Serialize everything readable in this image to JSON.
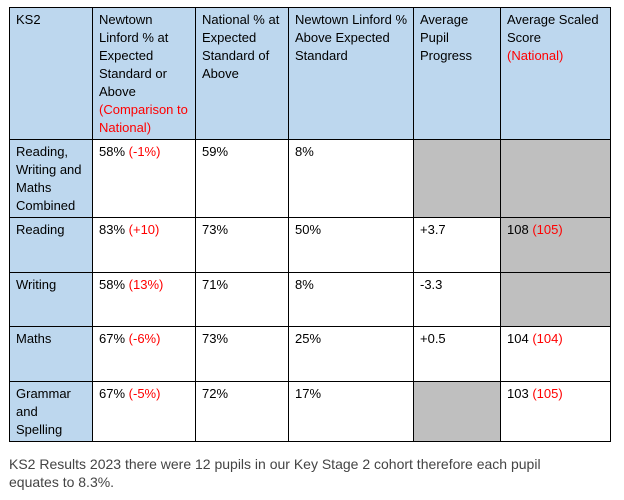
{
  "table": {
    "headers": [
      {
        "text": "KS2",
        "note": ""
      },
      {
        "text": "Newtown Linford % at Expected Standard or Above",
        "note": "(Comparison to National)"
      },
      {
        "text": "National % at Expected Standard of Above",
        "note": ""
      },
      {
        "text": "Newtown Linford % Above Expected Standard",
        "note": ""
      },
      {
        "text": "Average Pupil Progress",
        "note": ""
      },
      {
        "text": "Average Scaled Score",
        "note": "(National)"
      }
    ],
    "rows": [
      {
        "subject": "Reading, Writing and Maths Combined",
        "nl_pct": "58%",
        "nl_comp": "(-1%)",
        "national_pct": "59%",
        "above_pct": "8%",
        "progress": "",
        "score": "",
        "score_national": ""
      },
      {
        "subject": "Reading",
        "nl_pct": "83%",
        "nl_comp": "(+10)",
        "national_pct": "73%",
        "above_pct": "50%",
        "progress": "+3.7",
        "score": "108",
        "score_national": "(105)"
      },
      {
        "subject": "Writing",
        "nl_pct": "58%",
        "nl_comp": "(13%)",
        "national_pct": "71%",
        "above_pct": "8%",
        "progress": "-3.3",
        "score": "",
        "score_national": ""
      },
      {
        "subject": "Maths",
        "nl_pct": "67%",
        "nl_comp": "(-6%)",
        "national_pct": "73%",
        "above_pct": "25%",
        "progress": "+0.5",
        "score": "104",
        "score_national": "(104)"
      },
      {
        "subject": "Grammar and Spelling",
        "nl_pct": "67%",
        "nl_comp": "(-5%)",
        "national_pct": "72%",
        "above_pct": "17%",
        "progress": "",
        "score": "103",
        "score_national": "(105)"
      }
    ]
  },
  "caption": "KS2 Results 2023 there were 12 pupils in our Key Stage 2 cohort therefore each pupil equates to 8.3%.",
  "colors": {
    "header_bg": "#bdd7ee",
    "grey_cell": "#bfbfbf",
    "accent_red": "#ff0000"
  }
}
